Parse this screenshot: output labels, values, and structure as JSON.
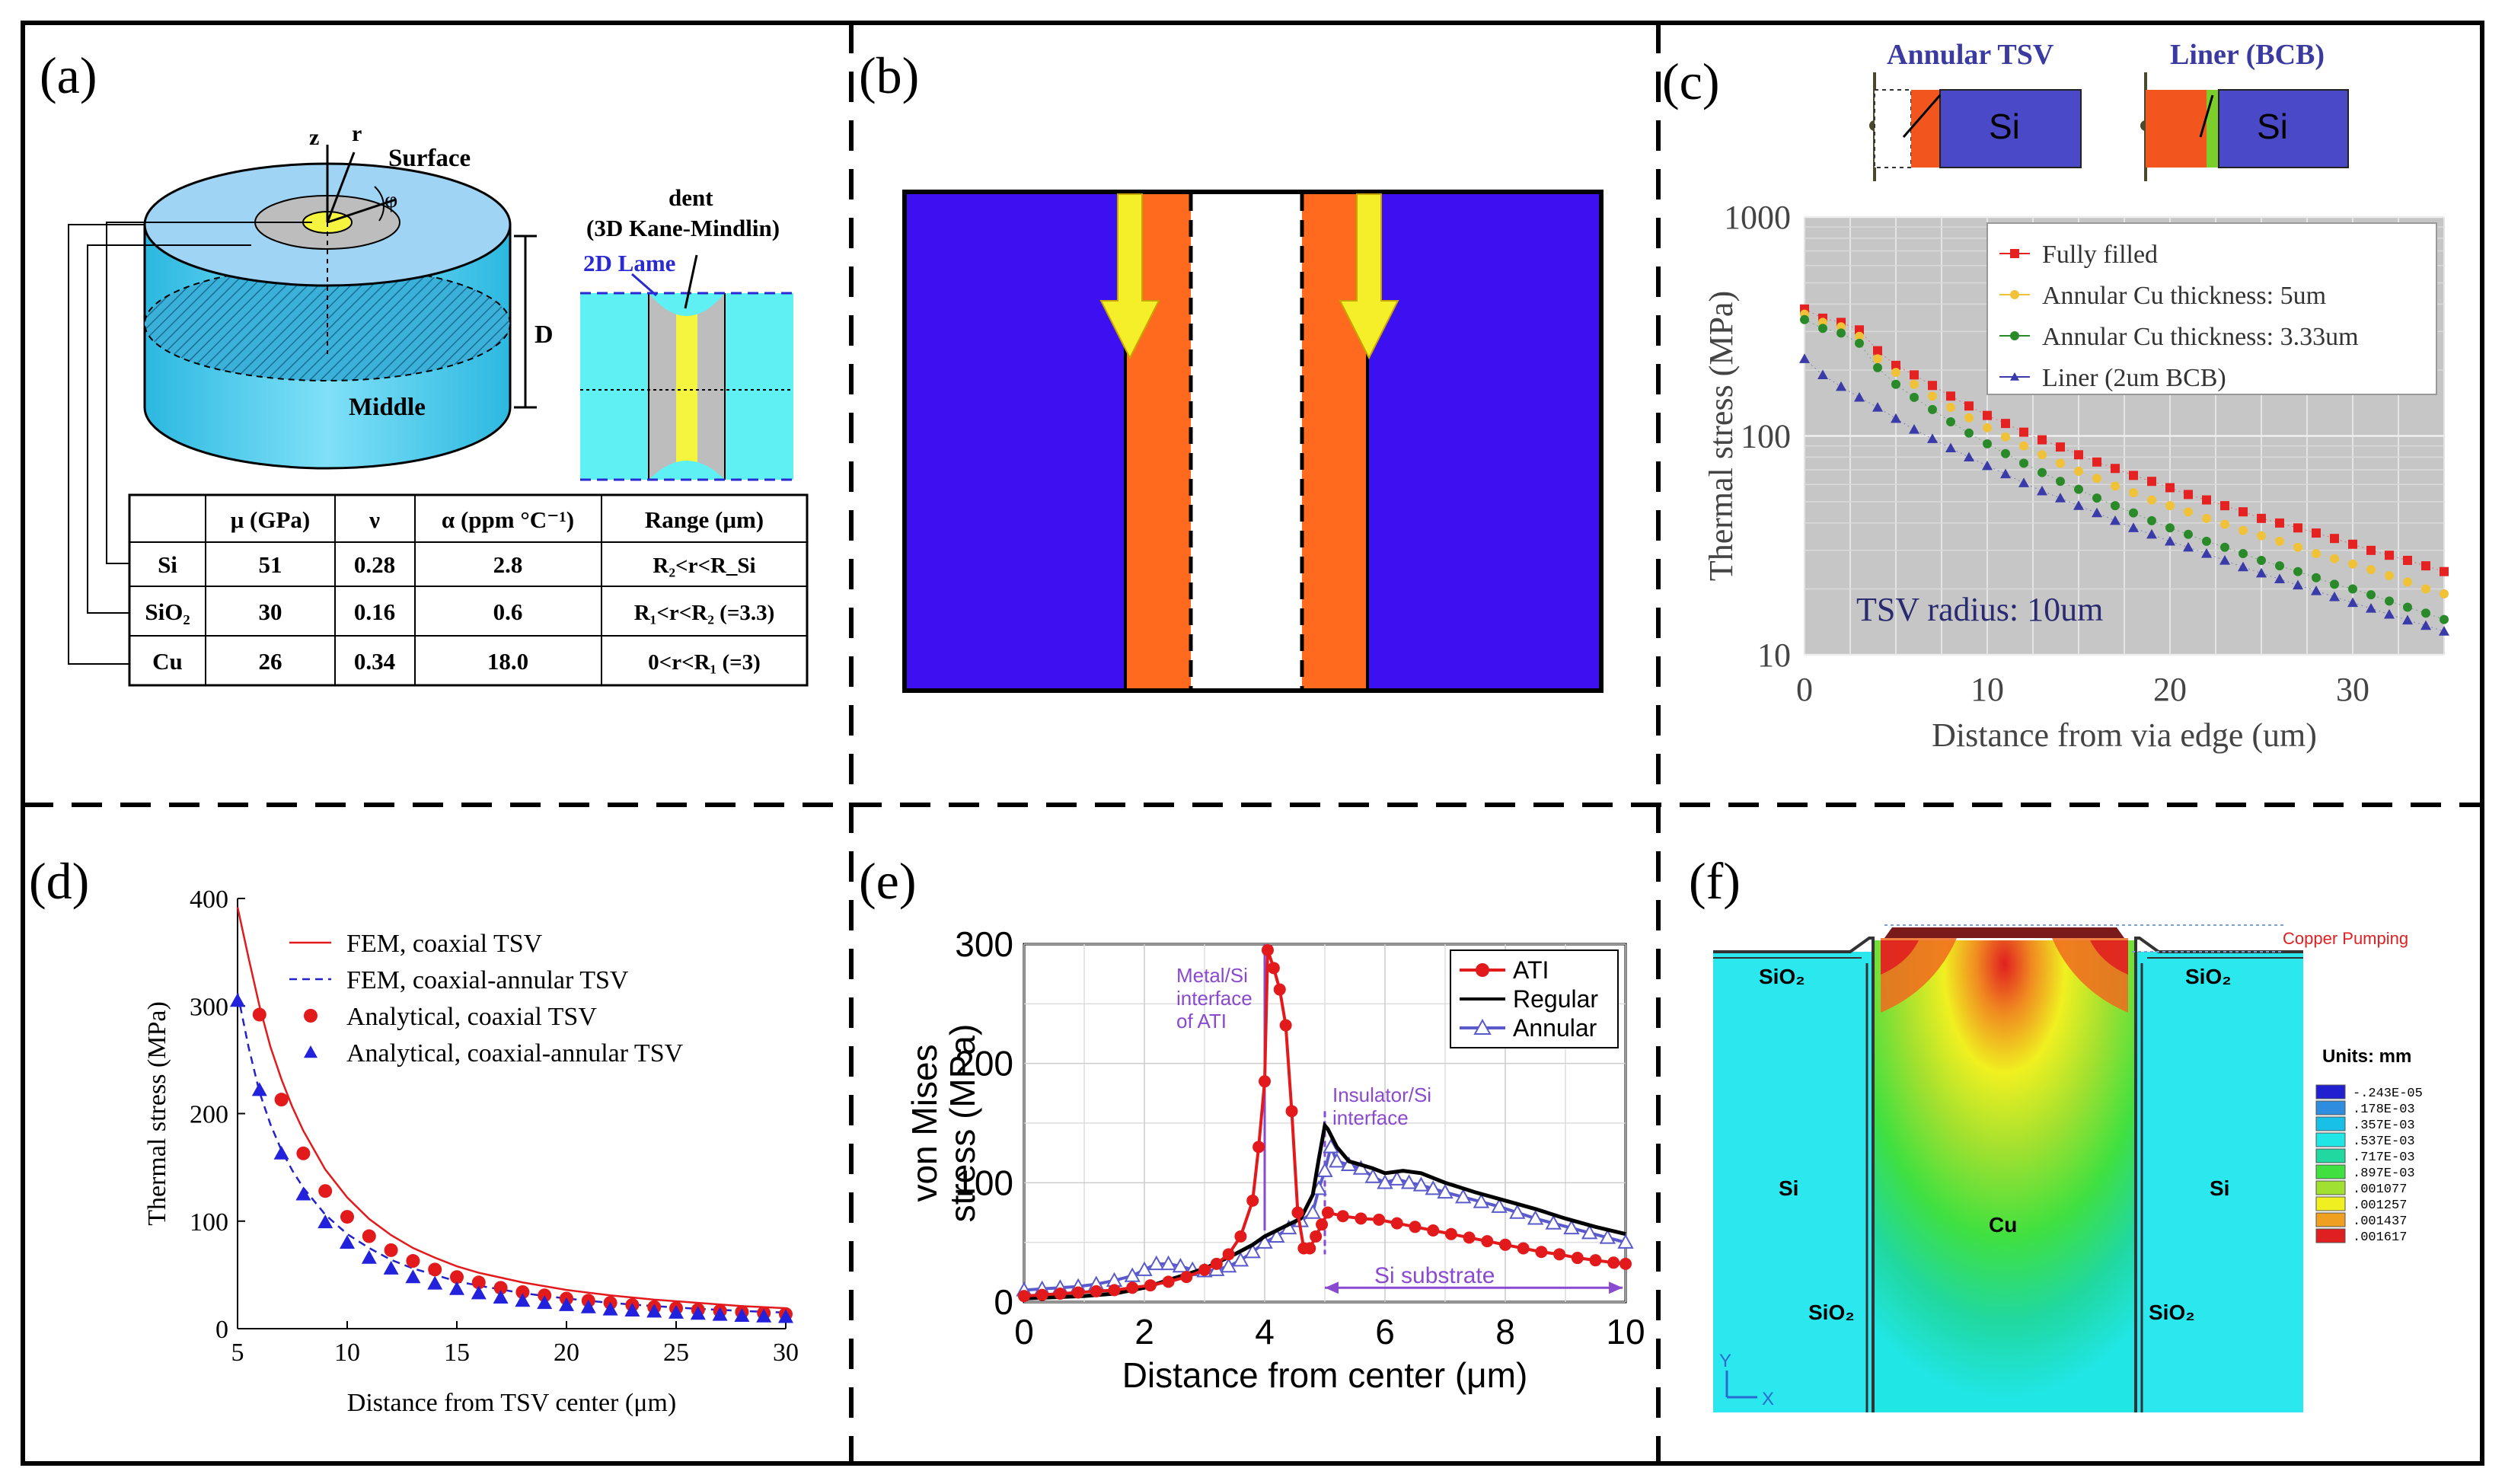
{
  "panels": {
    "a": {
      "label": "(a)",
      "z": "z",
      "r": "r",
      "phi": "φ",
      "surface": "Surface",
      "middle": "Middle",
      "dent": "dent",
      "kane": "(3D Kane-Mindlin)",
      "lame": "2D Lame",
      "D": "D",
      "table": {
        "headers": [
          "",
          "μ (GPa)",
          "ν",
          "α (ppm °C⁻¹)",
          "Range (μm)"
        ],
        "rows": [
          [
            "Si",
            "51",
            "0.28",
            "2.8",
            "R₂<r<R_Si"
          ],
          [
            "SiO₂",
            "30",
            "0.16",
            "0.6",
            "R₁<r<R₂ (=3.3)"
          ],
          [
            "Cu",
            "26",
            "0.34",
            "18.0",
            "0<r<R₁ (=3)"
          ]
        ]
      }
    },
    "b": {
      "label": "(b)"
    },
    "c": {
      "label": "(c)",
      "annular_title": "Annular TSV",
      "liner_title": "Liner (BCB)",
      "si": "Si",
      "annotation": "TSV radius: 10um"
    },
    "d": {
      "label": "(d)"
    },
    "e": {
      "label": "(e)",
      "ann_metal": [
        "Metal/Si",
        "interface",
        "of ATI"
      ],
      "ann_insulator": [
        "Insulator/Si",
        "interface"
      ],
      "ann_substrate": "Si substrate"
    },
    "f": {
      "label": "(f)",
      "copper_pumping": "Copper Pumping",
      "units": "Units: mm",
      "sio2_tl": "SiO₂",
      "sio2_tr": "SiO₂",
      "si_l": "Si",
      "si_r": "Si",
      "cu": "Cu",
      "sio2_bl": "SiO₂",
      "sio2_br": "SiO₂",
      "axis_y": "Y",
      "axis_x": "X",
      "legend_values": [
        "-.243E-05",
        ".178E-03",
        ".357E-03",
        ".537E-03",
        ".717E-03",
        ".897E-03",
        ".001077",
        ".001257",
        ".001437",
        ".001617"
      ],
      "legend_colors": [
        "#2020d0",
        "#2f8de0",
        "#18c0e8",
        "#20e6e6",
        "#20d8a0",
        "#40e040",
        "#a0e030",
        "#f0f020",
        "#f0a020",
        "#e02020"
      ]
    }
  },
  "chart_data": [
    {
      "id": "c",
      "type": "scatter",
      "xlabel": "Distance from via edge (um)",
      "ylabel": "Thermal stress (MPa)",
      "xlim": [
        0,
        35
      ],
      "ylim": [
        10,
        1000
      ],
      "yscale": "log",
      "xticks": [
        0,
        10,
        20,
        30
      ],
      "yticks": [
        10,
        100,
        1000
      ],
      "series": [
        {
          "name": "Fully filled",
          "color": "#e52222",
          "marker": "square",
          "x": [
            0,
            1,
            2,
            3,
            4,
            5,
            6,
            7,
            8,
            9,
            10,
            11,
            12,
            13,
            14,
            15,
            16,
            17,
            18,
            19,
            20,
            21,
            22,
            23,
            24,
            25,
            26,
            27,
            28,
            29,
            30,
            31,
            32,
            33,
            34,
            35
          ],
          "y": [
            380,
            345,
            330,
            305,
            245,
            210,
            190,
            170,
            152,
            137,
            124,
            114,
            104,
            96,
            89,
            82,
            76,
            71,
            66,
            62,
            58,
            54,
            51,
            48,
            45,
            42,
            40,
            38,
            36,
            34,
            32,
            30,
            28.5,
            27,
            25.5,
            24
          ]
        },
        {
          "name": "Annular Cu thickness: 5um",
          "color": "#f0c23a",
          "marker": "dot",
          "x": [
            0,
            1,
            2,
            3,
            4,
            5,
            6,
            7,
            8,
            9,
            10,
            11,
            12,
            13,
            14,
            15,
            16,
            17,
            18,
            19,
            20,
            21,
            22,
            23,
            24,
            25,
            26,
            27,
            28,
            29,
            30,
            31,
            32,
            33,
            34,
            35
          ],
          "y": [
            360,
            330,
            315,
            285,
            225,
            195,
            172,
            152,
            135,
            121,
            109,
            99,
            90,
            82,
            75,
            69,
            64,
            59,
            55,
            51,
            48,
            45,
            42,
            39.5,
            37,
            35,
            33,
            31,
            29,
            27.5,
            26,
            24.5,
            23,
            21.5,
            20,
            19
          ]
        },
        {
          "name": "Annular Cu thickness: 3.33um",
          "color": "#2a8a2a",
          "marker": "dot",
          "x": [
            0,
            1,
            2,
            3,
            4,
            5,
            6,
            7,
            8,
            9,
            10,
            11,
            12,
            13,
            14,
            15,
            16,
            17,
            18,
            19,
            20,
            21,
            22,
            23,
            24,
            25,
            26,
            27,
            28,
            29,
            30,
            31,
            32,
            33,
            34,
            35
          ],
          "y": [
            340,
            310,
            295,
            265,
            205,
            172,
            150,
            132,
            116,
            103,
            92,
            83,
            75,
            68,
            62,
            57,
            52,
            48,
            44.5,
            41,
            38,
            35.5,
            33,
            31,
            29,
            27,
            25.5,
            24,
            22.5,
            21,
            20,
            18.8,
            17.6,
            16.5,
            15.5,
            14.5
          ]
        },
        {
          "name": "Liner (2um BCB)",
          "color": "#3a3aa8",
          "marker": "triangle",
          "x": [
            0,
            1,
            2,
            3,
            4,
            5,
            6,
            7,
            8,
            9,
            10,
            11,
            12,
            13,
            14,
            15,
            16,
            17,
            18,
            19,
            20,
            21,
            22,
            23,
            24,
            25,
            26,
            27,
            28,
            29,
            30,
            31,
            32,
            33,
            34,
            35
          ],
          "y": [
            225,
            190,
            168,
            150,
            135,
            120,
            107,
            97,
            88,
            80,
            73,
            67,
            61,
            56,
            52,
            48,
            44.5,
            41,
            38,
            35.5,
            33,
            31,
            29,
            27,
            25.2,
            23.6,
            22.2,
            20.8,
            19.6,
            18.4,
            17.3,
            16.3,
            15.3,
            14.4,
            13.6,
            12.8
          ]
        }
      ]
    },
    {
      "id": "d",
      "type": "line",
      "xlabel": "Distance from TSV center (μm)",
      "ylabel": "Thermal stress (MPa)",
      "xlim": [
        5,
        30
      ],
      "ylim": [
        0,
        400
      ],
      "xticks": [
        5,
        10,
        15,
        20,
        25,
        30
      ],
      "yticks": [
        0,
        100,
        200,
        300,
        400
      ],
      "series": [
        {
          "name": "FEM, coaxial TSV",
          "color": "#e31a1c",
          "style": "solid",
          "x": [
            5,
            5.5,
            6,
            6.5,
            7,
            7.5,
            8,
            9,
            10,
            11,
            12,
            13,
            14,
            15,
            16,
            18,
            20,
            22,
            24,
            26,
            28,
            30
          ],
          "y": [
            392,
            345,
            300,
            262,
            232,
            206,
            184,
            148,
            122,
            102,
            87,
            75,
            66,
            58,
            52,
            43,
            36,
            31,
            27,
            24,
            21,
            19
          ]
        },
        {
          "name": "FEM, coaxial-annular TSV",
          "color": "#2222cc",
          "style": "dashed",
          "x": [
            5,
            5.5,
            6,
            6.5,
            7,
            7.5,
            8,
            9,
            10,
            11,
            12,
            13,
            14,
            15,
            16,
            18,
            20,
            22,
            24,
            26,
            28,
            30
          ],
          "y": [
            312,
            262,
            220,
            190,
            166,
            147,
            131,
            106,
            88,
            75,
            64,
            56,
            50,
            44,
            40,
            33,
            28,
            24,
            21,
            18.5,
            16.5,
            15
          ]
        },
        {
          "name": "Analytical, coaxial TSV",
          "color": "#e31a1c",
          "marker": "dot",
          "x": [
            6,
            7,
            8,
            9,
            10,
            11,
            12,
            13,
            14,
            15,
            16,
            17,
            18,
            19,
            20,
            21,
            22,
            23,
            24,
            25,
            26,
            27,
            28,
            29,
            30
          ],
          "y": [
            292,
            213,
            163,
            128,
            104,
            86,
            73,
            63,
            55,
            48,
            43,
            38,
            34,
            31,
            28,
            26,
            24,
            22,
            20,
            19,
            17.5,
            16.5,
            15.5,
            14.5,
            13.5
          ]
        },
        {
          "name": "Analytical, coaxial-annular TSV",
          "color": "#2222dd",
          "marker": "triangle",
          "x": [
            5,
            6,
            7,
            8,
            9,
            10,
            11,
            12,
            13,
            14,
            15,
            16,
            17,
            18,
            19,
            20,
            21,
            22,
            23,
            24,
            25,
            26,
            27,
            28,
            29,
            30
          ],
          "y": [
            305,
            222,
            163,
            125,
            99,
            80,
            66,
            56,
            48,
            42,
            37,
            33,
            29,
            26,
            24,
            22,
            20,
            18,
            17,
            16,
            15,
            14,
            13,
            12,
            11.5,
            11
          ]
        }
      ]
    },
    {
      "id": "e",
      "type": "line",
      "xlabel": "Distance from center (μm)",
      "ylabel": "von Mises stress (MPa)",
      "xlim": [
        0,
        10
      ],
      "ylim": [
        0,
        300
      ],
      "xticks": [
        0,
        2,
        4,
        6,
        8,
        10
      ],
      "yticks": [
        0,
        100,
        200,
        300
      ],
      "series": [
        {
          "name": "ATI",
          "color": "#e31a1c",
          "marker": "dot",
          "x": [
            0,
            0.3,
            0.6,
            0.9,
            1.2,
            1.5,
            1.8,
            2.1,
            2.4,
            2.7,
            3.0,
            3.2,
            3.4,
            3.6,
            3.8,
            3.9,
            4.0,
            4.05,
            4.15,
            4.25,
            4.35,
            4.45,
            4.55,
            4.65,
            4.75,
            4.85,
            4.95,
            5.05,
            5.3,
            5.6,
            5.9,
            6.2,
            6.5,
            6.8,
            7.1,
            7.4,
            7.7,
            8.0,
            8.3,
            8.6,
            8.9,
            9.2,
            9.5,
            9.8,
            10
          ],
          "y": [
            5,
            6,
            7,
            8,
            9,
            10,
            12,
            14,
            17,
            21,
            27,
            32,
            40,
            55,
            85,
            130,
            185,
            295,
            280,
            262,
            232,
            160,
            75,
            45,
            45,
            55,
            65,
            75,
            72,
            70,
            69,
            66,
            63,
            60,
            57,
            54,
            51,
            48,
            45,
            42,
            40,
            37,
            35,
            33,
            32
          ]
        },
        {
          "name": "Regular",
          "color": "#000000",
          "marker": "none",
          "x": [
            0,
            0.5,
            1,
            1.5,
            2,
            2.5,
            3,
            3.5,
            3.8,
            4.0,
            4.2,
            4.4,
            4.6,
            4.8,
            4.9,
            5.0,
            5.05,
            5.2,
            5.4,
            5.6,
            5.8,
            6.0,
            6.3,
            6.6,
            7,
            7.5,
            8,
            8.5,
            9,
            9.5,
            10
          ],
          "y": [
            3,
            4,
            5,
            7,
            12,
            20,
            28,
            40,
            48,
            55,
            60,
            65,
            70,
            90,
            120,
            148,
            145,
            130,
            118,
            115,
            112,
            108,
            110,
            108,
            100,
            92,
            85,
            78,
            70,
            63,
            57
          ]
        },
        {
          "name": "Annular",
          "color": "#5a5acc",
          "marker": "triangle-open",
          "x": [
            0,
            0.3,
            0.6,
            0.9,
            1.2,
            1.5,
            1.8,
            2.0,
            2.2,
            2.4,
            2.6,
            2.8,
            3.0,
            3.2,
            3.4,
            3.6,
            3.8,
            4.0,
            4.2,
            4.4,
            4.6,
            4.8,
            4.9,
            5.0,
            5.1,
            5.2,
            5.4,
            5.6,
            5.8,
            6.0,
            6.2,
            6.4,
            6.6,
            6.8,
            7.0,
            7.3,
            7.6,
            7.9,
            8.2,
            8.5,
            8.8,
            9.1,
            9.4,
            9.7,
            10
          ],
          "y": [
            10,
            11,
            12,
            13,
            15,
            18,
            22,
            27,
            32,
            32,
            30,
            27,
            26,
            27,
            30,
            35,
            42,
            50,
            55,
            62,
            68,
            75,
            95,
            110,
            130,
            118,
            115,
            112,
            105,
            100,
            103,
            100,
            98,
            95,
            92,
            88,
            84,
            80,
            75,
            70,
            66,
            62,
            58,
            54,
            50
          ]
        }
      ]
    }
  ]
}
